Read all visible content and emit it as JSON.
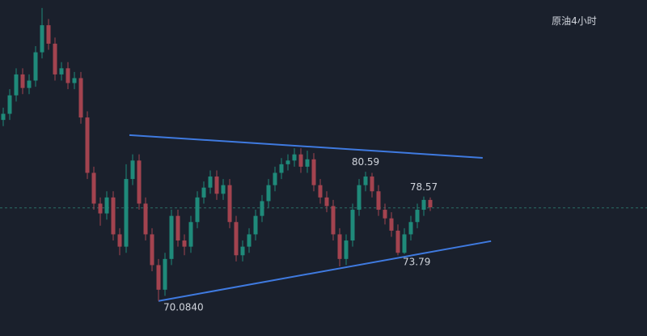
{
  "chart_data": {
    "type": "candlestick",
    "title": "原油4小时",
    "open": [
      84.8,
      85.3,
      86.8,
      88.5,
      87.4,
      88.0,
      90.3,
      92.5,
      91.0,
      88.5,
      89.0,
      87.8,
      88.2,
      85.0,
      80.5,
      78.0,
      77.2,
      78.5,
      75.5,
      74.5,
      80.0,
      81.5,
      78.0,
      75.5,
      73.0,
      71.0,
      73.5,
      77.0,
      75.0,
      74.5,
      76.5,
      78.5,
      79.3,
      80.2,
      78.8,
      79.5,
      76.5,
      73.8,
      74.5,
      75.5,
      77.0,
      78.2,
      79.5,
      80.5,
      81.2,
      81.5,
      82.0,
      81.0,
      81.6,
      79.5,
      78.5,
      77.8,
      75.5,
      73.5,
      75.0,
      77.5,
      79.5,
      80.2,
      79.0,
      77.5,
      76.8,
      75.8,
      74.0,
      75.5,
      76.5,
      77.5,
      78.3
    ],
    "high": [
      85.8,
      87.3,
      89.0,
      89.0,
      88.5,
      90.8,
      93.9,
      93.0,
      91.5,
      89.5,
      89.5,
      88.7,
      88.7,
      85.5,
      81.0,
      78.5,
      79.0,
      79.0,
      76.0,
      81.2,
      82.0,
      82.0,
      78.5,
      76.0,
      73.5,
      74.0,
      77.5,
      77.5,
      75.5,
      77.0,
      79.0,
      79.8,
      80.7,
      80.7,
      80.0,
      80.0,
      77.0,
      75.0,
      76.0,
      77.5,
      78.7,
      80.0,
      81.0,
      81.7,
      82.0,
      82.5,
      82.5,
      82.3,
      82.1,
      80.0,
      79.0,
      78.3,
      76.0,
      75.5,
      78.0,
      80.0,
      80.59,
      80.5,
      79.5,
      78.0,
      77.3,
      76.3,
      76.0,
      77.0,
      78.0,
      78.57,
      78.5
    ],
    "low": [
      84.3,
      84.8,
      86.3,
      86.9,
      86.9,
      87.5,
      89.8,
      90.5,
      88.0,
      88.0,
      87.3,
      87.3,
      84.5,
      80.0,
      77.5,
      76.2,
      76.7,
      75.0,
      73.8,
      74.0,
      79.5,
      77.5,
      75.0,
      72.5,
      70.084,
      70.5,
      73.0,
      74.5,
      73.8,
      74.0,
      76.0,
      78.0,
      78.8,
      78.3,
      78.3,
      76.0,
      73.3,
      73.3,
      74.0,
      75.0,
      76.5,
      77.7,
      79.0,
      80.0,
      80.7,
      81.0,
      80.5,
      80.5,
      79.0,
      78.0,
      77.3,
      75.0,
      72.9,
      73.0,
      74.5,
      77.0,
      79.0,
      78.5,
      77.0,
      76.3,
      75.3,
      73.79,
      73.9,
      75.0,
      76.0,
      77.0,
      77.4
    ],
    "close": [
      85.3,
      86.8,
      88.5,
      87.4,
      88.0,
      90.3,
      92.5,
      91.0,
      88.5,
      89.0,
      87.8,
      88.2,
      85.0,
      80.5,
      78.0,
      77.2,
      78.5,
      75.5,
      74.5,
      80.0,
      81.5,
      78.0,
      75.5,
      73.0,
      71.0,
      73.5,
      77.0,
      75.0,
      74.5,
      76.5,
      78.5,
      79.3,
      80.2,
      78.8,
      79.5,
      76.5,
      73.8,
      74.5,
      75.5,
      77.0,
      78.2,
      79.5,
      80.5,
      81.2,
      81.5,
      82.0,
      81.0,
      81.6,
      79.5,
      78.5,
      77.8,
      75.5,
      73.5,
      75.0,
      77.5,
      79.5,
      80.2,
      79.0,
      77.5,
      76.8,
      75.8,
      74.0,
      75.5,
      76.5,
      77.5,
      78.3,
      77.7
    ],
    "high_labels": [
      null,
      null,
      null,
      null,
      null,
      null,
      null,
      null,
      null,
      null,
      null,
      null,
      null,
      null,
      null,
      null,
      null,
      null,
      null,
      null,
      null,
      null,
      null,
      null,
      null,
      null,
      null,
      null,
      null,
      null,
      null,
      null,
      null,
      null,
      null,
      null,
      null,
      null,
      null,
      null,
      null,
      null,
      null,
      null,
      null,
      null,
      null,
      null,
      null,
      null,
      null,
      null,
      null,
      null,
      null,
      null,
      "80.59",
      null,
      null,
      null,
      null,
      null,
      null,
      null,
      null,
      "78.57",
      null
    ],
    "low_labels": [
      null,
      null,
      null,
      null,
      null,
      null,
      null,
      null,
      null,
      null,
      null,
      null,
      null,
      null,
      null,
      null,
      null,
      null,
      null,
      null,
      null,
      null,
      null,
      null,
      "70.0840",
      null,
      null,
      null,
      null,
      null,
      null,
      null,
      null,
      null,
      null,
      null,
      null,
      null,
      null,
      null,
      null,
      null,
      null,
      null,
      null,
      null,
      null,
      null,
      null,
      null,
      null,
      null,
      null,
      null,
      null,
      null,
      null,
      null,
      null,
      null,
      null,
      "73.79",
      null,
      null,
      null,
      null,
      null
    ],
    "up_color": "#1f8a7a",
    "down_color": "#a3434f",
    "ylim": [
      67.5,
      94.55
    ],
    "trendlines": [
      {
        "x": [
          19.5,
          74.1
        ],
        "values": [
          83.57,
          81.72
        ],
        "color": "#3f7ae0"
      },
      {
        "x": [
          24,
          75.4
        ],
        "values": [
          70.084,
          74.95
        ],
        "color": "#3f7ae0"
      }
    ],
    "price_line": {
      "value": 77.65,
      "color": "#2a6e66"
    }
  }
}
